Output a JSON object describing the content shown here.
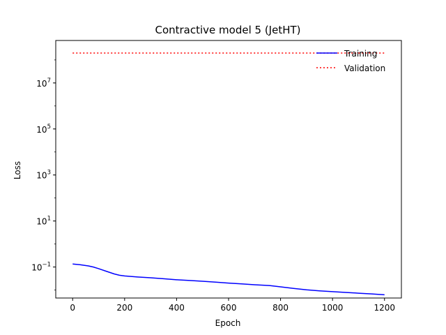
{
  "chart_data": {
    "type": "line",
    "title": "Contractive model 5 (JetHT)",
    "xlabel": "Epoch",
    "ylabel": "Loss",
    "yscale": "log",
    "xlim": [
      -65,
      1265
    ],
    "ylim": [
      0.0045,
      700000000
    ],
    "xticks": [
      0,
      200,
      400,
      600,
      800,
      1000,
      1200
    ],
    "xtick_labels": [
      "0",
      "200",
      "400",
      "600",
      "800",
      "1000",
      "1200"
    ],
    "yticks": [
      0.1,
      10,
      1000,
      100000,
      10000000
    ],
    "ytick_labels": [
      {
        "base": "10",
        "exp": "−1"
      },
      {
        "base": "10",
        "exp": "1"
      },
      {
        "base": "10",
        "exp": "3"
      },
      {
        "base": "10",
        "exp": "5"
      },
      {
        "base": "10",
        "exp": "7"
      }
    ],
    "grid": false,
    "legend_position": "top-right",
    "series": [
      {
        "name": "Training",
        "color": "#0000ff",
        "style": "solid",
        "x": [
          0,
          30,
          60,
          80,
          100,
          130,
          160,
          180,
          200,
          250,
          300,
          350,
          400,
          450,
          500,
          550,
          600,
          650,
          700,
          750,
          760,
          800,
          850,
          900,
          950,
          1000,
          1050,
          1100,
          1150,
          1200
        ],
        "y": [
          0.135,
          0.125,
          0.112,
          0.1,
          0.085,
          0.065,
          0.05,
          0.044,
          0.041,
          0.037,
          0.034,
          0.031,
          0.028,
          0.026,
          0.024,
          0.022,
          0.02,
          0.0185,
          0.017,
          0.0158,
          0.0155,
          0.0138,
          0.0118,
          0.0102,
          0.0092,
          0.0085,
          0.0079,
          0.0073,
          0.0068,
          0.0062
        ]
      },
      {
        "name": "Validation",
        "color": "#ff0000",
        "style": "dotted",
        "x": [
          0,
          1200
        ],
        "y": [
          200000000,
          200000000
        ]
      }
    ]
  }
}
